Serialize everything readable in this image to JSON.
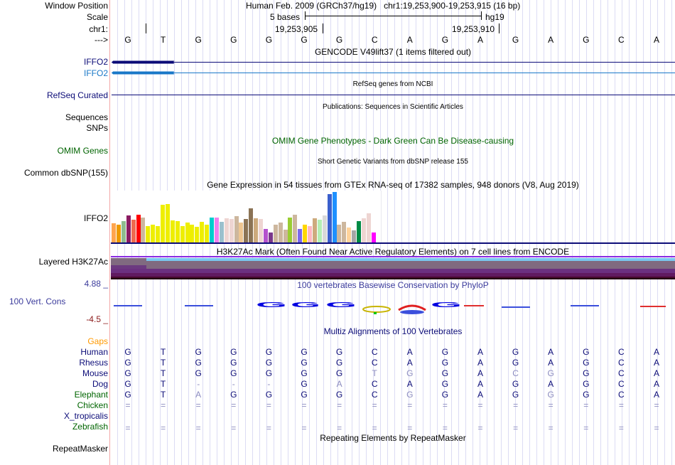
{
  "header": {
    "window_position_label": "Window Position",
    "assembly": "Human Feb. 2009 (GRCh37/hg19)",
    "position": "chr1:19,253,900-19,253,915 (16 bp)",
    "scale_label": "Scale",
    "scale_text": "5 bases",
    "scale_db": "hg19",
    "chrom_label": "chr1:",
    "coord1": "19,253,905",
    "coord2": "19,253,910",
    "strand_label": "--->"
  },
  "bases": [
    "G",
    "T",
    "G",
    "G",
    "G",
    "G",
    "G",
    "C",
    "A",
    "G",
    "A",
    "G",
    "A",
    "G",
    "C",
    "A"
  ],
  "tracks": {
    "gencode_title": "GENCODE V49lift37 (1 items filtered out)",
    "gencode_gene1": "IFFO2",
    "gencode_gene2": "IFFO2",
    "refseq_title": "RefSeq genes from NCBI",
    "refseq_label": "RefSeq Curated",
    "pubs_title": "Publications: Sequences in Scientific Articles",
    "pubs_label": "Sequences",
    "snps_label": "SNPs",
    "omim_title": "OMIM Gene Phenotypes - Dark Green Can Be Disease-causing",
    "omim_label": "OMIM Genes",
    "dbsnp_title": "Short Genetic Variants from dbSNP release 155",
    "dbsnp_label": "Common dbSNP(155)",
    "gtex_title": "Gene Expression in 54 tissues from GTEx RNA-seq of 17382 samples, 948 donors (V8, Aug 2019)",
    "gtex_label": "IFFO2",
    "h3k_title": "H3K27Ac Mark (Often Found Near Active Regulatory Elements) on 7 cell lines from ENCODE",
    "h3k_label": "Layered H3K27Ac",
    "phylop_title": "100 vertebrates Basewise Conservation by PhyloP",
    "phylop_label": "100 Vert. Cons",
    "phylop_max": "4.88 _",
    "phylop_min": "-4.5 _",
    "multiz_title": "Multiz Alignments of 100 Vertebrates",
    "gaps_label": "Gaps",
    "rmsk_title": "Repeating Elements by RepeatMasker",
    "rmsk_label": "RepeatMasker"
  },
  "gtex": {
    "values": [
      28,
      26,
      31,
      39,
      33,
      40,
      36,
      24,
      26,
      24,
      54,
      55,
      32,
      31,
      24,
      29,
      26,
      23,
      30,
      26,
      36,
      36,
      30,
      35,
      34,
      38,
      29,
      34,
      49,
      35,
      34,
      20,
      14,
      26,
      29,
      19,
      36,
      40,
      20,
      26,
      24,
      35,
      33,
      39,
      70,
      73,
      26,
      30,
      22,
      17,
      31,
      35,
      42,
      14
    ],
    "colors": [
      "#FFA54F",
      "#EE9A00",
      "#8FBC8F",
      "#8B1C62",
      "#EE6A50",
      "#FF0000",
      "#CDB79E",
      "#EEEE00",
      "#EEEE00",
      "#EEEE00",
      "#EEEE00",
      "#EEEE00",
      "#EEEE00",
      "#EEEE00",
      "#EEEE00",
      "#EEEE00",
      "#EEEE00",
      "#EEEE00",
      "#EEEE00",
      "#EEEE00",
      "#00CDCD",
      "#EE82EE",
      "#9AC0CD",
      "#EED5D2",
      "#EED5D2",
      "#CDB79E",
      "#EEC591",
      "#8B7355",
      "#8B7355",
      "#CDAA7D",
      "#EED5D2",
      "#B452CD",
      "#7A378B",
      "#CDB79E",
      "#CDB79E",
      "#CDB79E",
      "#9ACD32",
      "#CDB79E",
      "#7B68EE",
      "#FFD700",
      "#FFB6C1",
      "#CDAA7D",
      "#B4EEB4",
      "#D9D9D9",
      "#3A5FCD",
      "#1E90FF",
      "#CDB79E",
      "#CDB79E",
      "#FFD39B",
      "#A6A6A6",
      "#008B45",
      "#EED5D2",
      "#EED5D2",
      "#FF00FF"
    ]
  },
  "multiz": [
    {
      "species": "Human",
      "seq": "GTGGGGGCAGAGAGCA"
    },
    {
      "species": "Rhesus",
      "seq": "GTGGGGGCAGAGAGCA"
    },
    {
      "species": "Mouse",
      "seq": "GTGGGGGTGGACGGCA"
    },
    {
      "species": "Dog",
      "seq": "GT---GACAGAGAGCA"
    },
    {
      "species": "Elephant",
      "seq": "GTAGGGGCGGAGGGCA"
    },
    {
      "species": "Chicken",
      "seq": "================"
    },
    {
      "species": "X_tropicalis",
      "seq": ""
    },
    {
      "species": "Zebrafish",
      "seq": "================"
    }
  ],
  "colors": {
    "gene_dark": "#0c0c78",
    "gene_light": "#1a78c8",
    "omim": "#006400",
    "multiz_text": "#0c0c78",
    "gaps": "#ff9900",
    "phylop_max": "#3c3c9c",
    "phylop_min": "#8b1a1a"
  }
}
